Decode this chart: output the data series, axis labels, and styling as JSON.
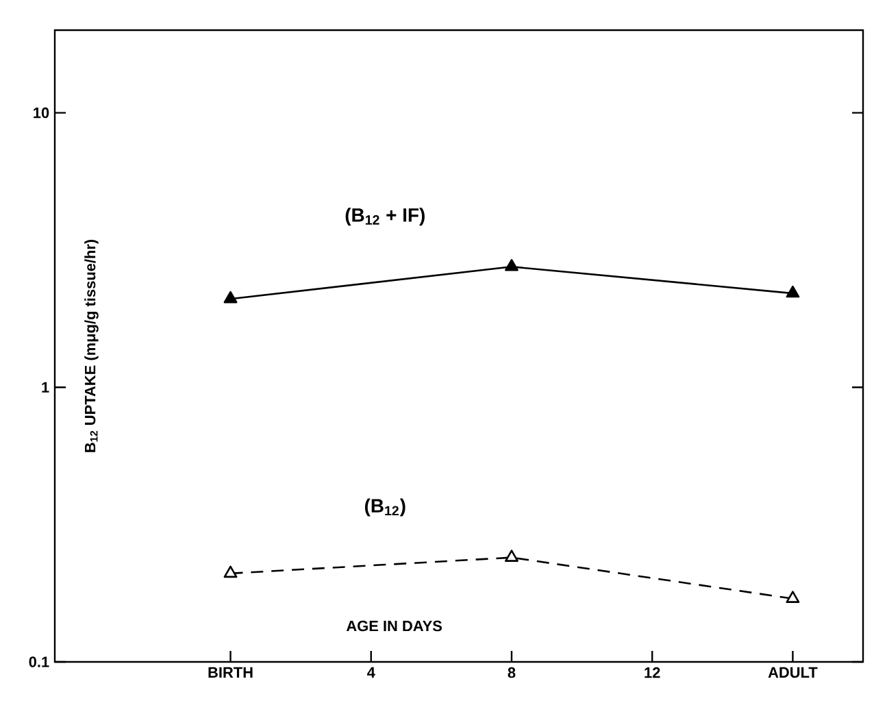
{
  "chart_data": {
    "type": "line",
    "xlabel": "AGE IN DAYS",
    "ylabel": "B$_{12}$ UPTAKE (mμg/g tissue/hr)",
    "x": [
      0,
      8,
      16
    ],
    "series": [
      {
        "name": "(B$_{12}$ + IF)",
        "color": "#000000",
        "values": [
          2.1,
          2.75,
          2.2
        ],
        "line_style": "solid",
        "marker": "triangle"
      },
      {
        "name": "(B$_{12}$)",
        "color": "#000000",
        "values": [
          0.21,
          0.24,
          0.17
        ],
        "line_style": "dashed",
        "marker": "triangle"
      }
    ],
    "log": "y",
    "xlim": [
      -5,
      18
    ],
    "ylim": [
      0.1,
      20
    ],
    "xticks": [
      {
        "value": 0,
        "label": "BIRTH"
      },
      4,
      8,
      12,
      {
        "value": 16,
        "label": "ADULT"
      }
    ],
    "yticks": [
      {
        "value": 0.1,
        "label": "0.1"
      },
      1,
      10
    ]
  }
}
